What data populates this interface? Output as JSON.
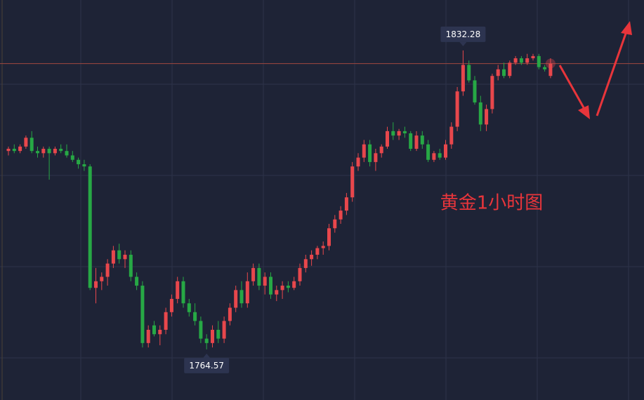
{
  "chart_data": {
    "type": "candlestick",
    "annotation": "黄金1小时图",
    "ylim": [
      1753.1,
      1843.7
    ],
    "up_color": "#e8474c",
    "down_color": "#27a845",
    "grid": true,
    "candles": [
      [
        1809.5,
        1810.5,
        1808.5,
        1810
      ],
      [
        1810,
        1811,
        1809,
        1809.5
      ],
      [
        1809.5,
        1811,
        1809,
        1810.5
      ],
      [
        1810.5,
        1813,
        1810,
        1812.5
      ],
      [
        1812.5,
        1814,
        1809,
        1809.5
      ],
      [
        1809.5,
        1810.5,
        1808,
        1809
      ],
      [
        1809,
        1810.5,
        1808,
        1810
      ],
      [
        1810,
        1810.5,
        1803,
        1809
      ],
      [
        1809,
        1810.5,
        1808.5,
        1810
      ],
      [
        1810,
        1811,
        1809,
        1809.5
      ],
      [
        1809.5,
        1811,
        1808,
        1808.5
      ],
      [
        1808.5,
        1809.5,
        1807,
        1807.5
      ],
      [
        1807.5,
        1808,
        1805.5,
        1806.5
      ],
      [
        1806.5,
        1807.5,
        1805,
        1806
      ],
      [
        1806,
        1806.5,
        1778,
        1778.5
      ],
      [
        1778.5,
        1783,
        1775,
        1780
      ],
      [
        1780,
        1782,
        1778,
        1781
      ],
      [
        1781,
        1785,
        1779,
        1784
      ],
      [
        1784,
        1788,
        1783,
        1787
      ],
      [
        1787,
        1788.5,
        1784,
        1785
      ],
      [
        1785,
        1787,
        1783,
        1786
      ],
      [
        1786,
        1787,
        1780,
        1781
      ],
      [
        1781,
        1782,
        1778,
        1779
      ],
      [
        1779,
        1780,
        1765,
        1766
      ],
      [
        1766,
        1770,
        1765,
        1769
      ],
      [
        1770,
        1771,
        1767.5,
        1768
      ],
      [
        1768,
        1770,
        1765.5,
        1769
      ],
      [
        1769,
        1774,
        1768,
        1773
      ],
      [
        1773,
        1777,
        1772,
        1776
      ],
      [
        1776,
        1781,
        1775,
        1780
      ],
      [
        1780,
        1781,
        1774,
        1775
      ],
      [
        1775,
        1776,
        1772,
        1773
      ],
      [
        1773,
        1775,
        1770,
        1771
      ],
      [
        1771,
        1772,
        1766,
        1767
      ],
      [
        1767,
        1768,
        1764.57,
        1766
      ],
      [
        1766,
        1770,
        1765,
        1769
      ],
      [
        1769,
        1771,
        1766,
        1767
      ],
      [
        1767,
        1772,
        1766,
        1771
      ],
      [
        1771,
        1775,
        1770,
        1774
      ],
      [
        1774,
        1779,
        1773,
        1778
      ],
      [
        1778,
        1780,
        1774,
        1775
      ],
      [
        1775,
        1782,
        1774,
        1780
      ],
      [
        1780,
        1784,
        1779,
        1783
      ],
      [
        1783,
        1784,
        1778,
        1779
      ],
      [
        1779,
        1782,
        1777,
        1781
      ],
      [
        1781,
        1782,
        1776,
        1777
      ],
      [
        1777,
        1779,
        1775.5,
        1778
      ],
      [
        1778,
        1780,
        1776,
        1779
      ],
      [
        1779,
        1780,
        1777.5,
        1778.5
      ],
      [
        1778.5,
        1781,
        1778,
        1780
      ],
      [
        1780,
        1784,
        1779,
        1783
      ],
      [
        1783,
        1786,
        1782,
        1785
      ],
      [
        1785,
        1787,
        1783.5,
        1786
      ],
      [
        1786,
        1788,
        1785,
        1787.5
      ],
      [
        1787.5,
        1789,
        1786,
        1788
      ],
      [
        1788,
        1793,
        1787,
        1792
      ],
      [
        1792,
        1795,
        1791,
        1794
      ],
      [
        1794,
        1797,
        1793,
        1796
      ],
      [
        1796,
        1800,
        1795,
        1799
      ],
      [
        1799,
        1807,
        1798,
        1806
      ],
      [
        1806,
        1809,
        1805,
        1808
      ],
      [
        1808,
        1812,
        1807,
        1811
      ],
      [
        1811,
        1812,
        1806,
        1807
      ],
      [
        1807,
        1810,
        1805,
        1809
      ],
      [
        1809,
        1811,
        1808,
        1810.5
      ],
      [
        1810.5,
        1815,
        1810,
        1814
      ],
      [
        1814,
        1816,
        1812,
        1813
      ],
      [
        1813,
        1814.5,
        1812,
        1814
      ],
      [
        1814,
        1815,
        1812.5,
        1813.5
      ],
      [
        1813.5,
        1814,
        1809.5,
        1810
      ],
      [
        1810,
        1814,
        1809.5,
        1813
      ],
      [
        1813,
        1814,
        1810,
        1811
      ],
      [
        1811,
        1812,
        1807,
        1807.5
      ],
      [
        1807.5,
        1809.5,
        1807,
        1809
      ],
      [
        1809,
        1810,
        1807.5,
        1808
      ],
      [
        1808,
        1812,
        1807.5,
        1811
      ],
      [
        1811,
        1816,
        1810,
        1815
      ],
      [
        1815,
        1824,
        1814,
        1823
      ],
      [
        1823,
        1832.28,
        1822,
        1829
      ],
      [
        1829,
        1830,
        1825,
        1825.5
      ],
      [
        1825.5,
        1826.5,
        1820,
        1820.5
      ],
      [
        1820.5,
        1822,
        1814,
        1815.5
      ],
      [
        1815.5,
        1820,
        1814,
        1819
      ],
      [
        1819,
        1827,
        1818,
        1826.5
      ],
      [
        1826.5,
        1829,
        1825.5,
        1828
      ],
      [
        1828,
        1829.5,
        1826,
        1826.5
      ],
      [
        1826.5,
        1830,
        1826,
        1829.5
      ],
      [
        1829.5,
        1831,
        1829,
        1830.5
      ],
      [
        1830.5,
        1831,
        1829,
        1829.5
      ],
      [
        1829.5,
        1831.5,
        1829,
        1830.5
      ],
      [
        1830.5,
        1831.5,
        1830,
        1831
      ],
      [
        1831,
        1831.5,
        1828,
        1828.5
      ],
      [
        1828.5,
        1829,
        1827.5,
        1828
      ],
      [
        1826.5,
        1830.5,
        1826,
        1829.3
      ]
    ]
  }
}
